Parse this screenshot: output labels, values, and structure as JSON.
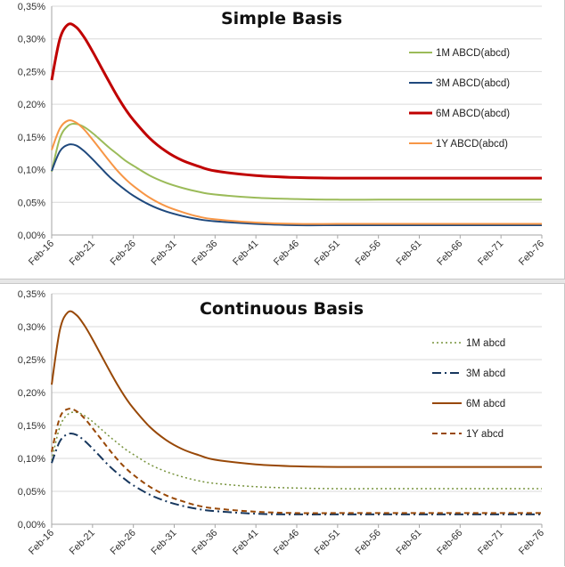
{
  "chart_data": [
    {
      "type": "line",
      "title": "Simple Basis",
      "xlabel": "",
      "ylabel": "",
      "ylim": [
        0,
        0.35
      ],
      "y_ticks": [
        "0,00%",
        "0,05%",
        "0,10%",
        "0,15%",
        "0,20%",
        "0,25%",
        "0,30%",
        "0,35%"
      ],
      "x_ticks": [
        "Feb-16",
        "Feb-21",
        "Feb-26",
        "Feb-31",
        "Feb-36",
        "Feb-41",
        "Feb-46",
        "Feb-51",
        "Feb-56",
        "Feb-61",
        "Feb-66",
        "Feb-71",
        "Feb-76"
      ],
      "x": [
        0,
        1,
        2,
        3,
        4,
        5,
        6,
        7,
        8,
        9,
        10,
        12,
        14,
        16,
        18,
        20,
        25,
        30,
        35,
        40,
        45,
        50,
        55,
        60
      ],
      "grid": true,
      "legend_position": "right",
      "series": [
        {
          "name": "1M ABCD(abcd)",
          "color": "#9bbb59",
          "dash": "",
          "width": 2,
          "values": [
            0.097,
            0.148,
            0.167,
            0.17,
            0.165,
            0.156,
            0.145,
            0.134,
            0.124,
            0.114,
            0.106,
            0.091,
            0.08,
            0.072,
            0.066,
            0.062,
            0.057,
            0.055,
            0.054,
            0.054,
            0.054,
            0.054,
            0.054,
            0.054
          ]
        },
        {
          "name": "3M ABCD(abcd)",
          "color": "#1f497d",
          "dash": "",
          "width": 2,
          "values": [
            0.098,
            0.128,
            0.138,
            0.137,
            0.128,
            0.116,
            0.103,
            0.09,
            0.079,
            0.069,
            0.06,
            0.046,
            0.036,
            0.029,
            0.024,
            0.021,
            0.017,
            0.015,
            0.015,
            0.015,
            0.015,
            0.015,
            0.015,
            0.015
          ]
        },
        {
          "name": "6M ABCD(abcd)",
          "color": "#c00000",
          "dash": "",
          "width": 3,
          "values": [
            0.237,
            0.3,
            0.322,
            0.318,
            0.302,
            0.281,
            0.258,
            0.235,
            0.213,
            0.193,
            0.176,
            0.148,
            0.128,
            0.114,
            0.105,
            0.098,
            0.091,
            0.088,
            0.087,
            0.087,
            0.087,
            0.087,
            0.087,
            0.087
          ]
        },
        {
          "name": "1Y ABCD(abcd)",
          "color": "#f79646",
          "dash": "",
          "width": 2,
          "values": [
            0.13,
            0.163,
            0.175,
            0.172,
            0.161,
            0.146,
            0.13,
            0.114,
            0.099,
            0.086,
            0.075,
            0.057,
            0.044,
            0.035,
            0.028,
            0.024,
            0.019,
            0.017,
            0.017,
            0.017,
            0.017,
            0.017,
            0.017,
            0.017
          ]
        }
      ]
    },
    {
      "type": "line",
      "title": "Continuous Basis",
      "xlabel": "",
      "ylabel": "",
      "ylim": [
        0,
        0.35
      ],
      "y_ticks": [
        "0,00%",
        "0,05%",
        "0,10%",
        "0,15%",
        "0,20%",
        "0,25%",
        "0,30%",
        "0,35%"
      ],
      "x_ticks": [
        "Feb-16",
        "Feb-21",
        "Feb-26",
        "Feb-31",
        "Feb-36",
        "Feb-41",
        "Feb-46",
        "Feb-51",
        "Feb-56",
        "Feb-61",
        "Feb-66",
        "Feb-71",
        "Feb-76"
      ],
      "x": [
        0,
        1,
        2,
        3,
        4,
        5,
        6,
        7,
        8,
        9,
        10,
        12,
        14,
        16,
        18,
        20,
        25,
        30,
        35,
        40,
        45,
        50,
        55,
        60
      ],
      "grid": true,
      "legend_position": "right",
      "series": [
        {
          "name": "1M abcd",
          "color": "#77933c",
          "dash": "2,3",
          "width": 1.5,
          "values": [
            0.097,
            0.148,
            0.167,
            0.17,
            0.165,
            0.156,
            0.145,
            0.134,
            0.124,
            0.114,
            0.106,
            0.091,
            0.08,
            0.072,
            0.066,
            0.062,
            0.057,
            0.055,
            0.054,
            0.054,
            0.054,
            0.054,
            0.054,
            0.054
          ]
        },
        {
          "name": "3M abcd",
          "color": "#17375e",
          "dash": "10,4,2,4",
          "width": 2,
          "values": [
            0.093,
            0.126,
            0.137,
            0.136,
            0.127,
            0.115,
            0.102,
            0.089,
            0.078,
            0.068,
            0.059,
            0.045,
            0.035,
            0.028,
            0.023,
            0.02,
            0.016,
            0.015,
            0.015,
            0.015,
            0.015,
            0.015,
            0.015,
            0.015
          ]
        },
        {
          "name": "6M abcd",
          "color": "#984807",
          "dash": "",
          "width": 2,
          "values": [
            0.212,
            0.295,
            0.322,
            0.318,
            0.302,
            0.281,
            0.258,
            0.235,
            0.213,
            0.193,
            0.176,
            0.148,
            0.128,
            0.114,
            0.105,
            0.098,
            0.091,
            0.088,
            0.087,
            0.087,
            0.087,
            0.087,
            0.087,
            0.087
          ]
        },
        {
          "name": "1Y abcd",
          "color": "#984807",
          "dash": "6,4",
          "width": 2,
          "values": [
            0.11,
            0.162,
            0.175,
            0.172,
            0.161,
            0.146,
            0.13,
            0.114,
            0.099,
            0.086,
            0.075,
            0.057,
            0.044,
            0.035,
            0.028,
            0.024,
            0.019,
            0.017,
            0.017,
            0.017,
            0.017,
            0.017,
            0.017,
            0.017
          ]
        }
      ]
    }
  ]
}
